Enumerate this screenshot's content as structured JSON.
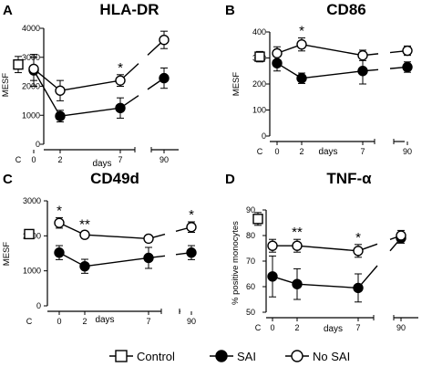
{
  "legend": {
    "items": [
      {
        "label": "Control",
        "marker": "open-square"
      },
      {
        "label": "SAI",
        "marker": "filled-circle"
      },
      {
        "label": "No SAI",
        "marker": "open-circle"
      }
    ],
    "placement": "bottom-center"
  },
  "colors": {
    "ink": "#000000",
    "background": "#ffffff"
  },
  "chart_data": [
    {
      "type": "line",
      "letter": "A",
      "title": "HLA-DR",
      "ylabel": "MESF",
      "xlabel": "days",
      "ylim": [
        0,
        4000
      ],
      "yticks": [
        0,
        1000,
        2000,
        3000,
        4000
      ],
      "xtick_labels": [
        "C",
        "0",
        "2",
        "7",
        "90"
      ],
      "axis_break": "between 7 and 90",
      "control": {
        "value": 2750,
        "err": 280
      },
      "series": [
        {
          "name": "SAI",
          "marker": "filled-circle",
          "points": [
            {
              "x": "0",
              "y": 2550,
              "err": 550
            },
            {
              "x": "2",
              "y": 970,
              "err": 200
            },
            {
              "x": "7",
              "y": 1250,
              "err": 350
            },
            {
              "x": "90",
              "y": 2280,
              "err": 350
            }
          ]
        },
        {
          "name": "No SAI",
          "marker": "open-circle",
          "points": [
            {
              "x": "0",
              "y": 2600,
              "err": 400
            },
            {
              "x": "2",
              "y": 1850,
              "err": 350
            },
            {
              "x": "7",
              "y": 2200,
              "err": 200
            },
            {
              "x": "90",
              "y": 3600,
              "err": 300
            }
          ]
        }
      ],
      "annotations": [
        {
          "x": "7",
          "text": "*"
        }
      ]
    },
    {
      "type": "line",
      "letter": "B",
      "title": "CD86",
      "ylabel": "MESF",
      "xlabel": "days",
      "ylim": [
        0,
        400
      ],
      "yticks": [
        0,
        100,
        200,
        300,
        400
      ],
      "xtick_labels": [
        "C",
        "0",
        "2",
        "7",
        "90"
      ],
      "axis_break": "between 7 and 90",
      "control": {
        "value": 305,
        "err": 20
      },
      "series": [
        {
          "name": "SAI",
          "marker": "filled-circle",
          "points": [
            {
              "x": "0",
              "y": 280,
              "err": 30
            },
            {
              "x": "2",
              "y": 222,
              "err": 20
            },
            {
              "x": "7",
              "y": 250,
              "err": 50
            },
            {
              "x": "90",
              "y": 265,
              "err": 20
            }
          ]
        },
        {
          "name": "No SAI",
          "marker": "open-circle",
          "points": [
            {
              "x": "0",
              "y": 318,
              "err": 25
            },
            {
              "x": "2",
              "y": 352,
              "err": 25
            },
            {
              "x": "7",
              "y": 310,
              "err": 20
            },
            {
              "x": "90",
              "y": 328,
              "err": 18
            }
          ]
        }
      ],
      "annotations": [
        {
          "x": "2",
          "text": "*"
        }
      ]
    },
    {
      "type": "line",
      "letter": "C",
      "title": "CD49d",
      "ylabel": "MESF",
      "xlabel": "days",
      "ylim": [
        0,
        3000
      ],
      "yticks": [
        0,
        1000,
        2000,
        3000
      ],
      "xtick_labels": [
        "C",
        "0",
        "2",
        "7",
        "90"
      ],
      "axis_break": "between 7 and 90",
      "control": {
        "value": 2050,
        "err": 100
      },
      "series": [
        {
          "name": "SAI",
          "marker": "filled-circle",
          "points": [
            {
              "x": "0",
              "y": 1520,
              "err": 200
            },
            {
              "x": "2",
              "y": 1130,
              "err": 200
            },
            {
              "x": "7",
              "y": 1370,
              "err": 300
            },
            {
              "x": "90",
              "y": 1520,
              "err": 200
            }
          ]
        },
        {
          "name": "No SAI",
          "marker": "open-circle",
          "points": [
            {
              "x": "0",
              "y": 2370,
              "err": 150
            },
            {
              "x": "2",
              "y": 2030,
              "err": 100
            },
            {
              "x": "7",
              "y": 1920,
              "err": 100
            },
            {
              "x": "90",
              "y": 2250,
              "err": 150
            }
          ]
        }
      ],
      "annotations": [
        {
          "x": "0",
          "text": "*"
        },
        {
          "x": "2",
          "text": "**"
        },
        {
          "x": "90",
          "text": "*"
        }
      ]
    },
    {
      "type": "line",
      "letter": "D",
      "title": "TNF-α",
      "ylabel": "% positive monocytes",
      "xlabel": "days",
      "ylim": [
        50,
        90
      ],
      "yticks": [
        50,
        60,
        70,
        80,
        90
      ],
      "xtick_labels": [
        "C",
        "0",
        "2",
        "7",
        "90"
      ],
      "axis_break": "between 7 and 90",
      "control": {
        "value": 86.5,
        "err": 2.5
      },
      "series": [
        {
          "name": "SAI",
          "marker": "filled-circle",
          "points": [
            {
              "x": "0",
              "y": 64,
              "err": 8
            },
            {
              "x": "2",
              "y": 61,
              "err": 6
            },
            {
              "x": "7",
              "y": 59.5,
              "err": 5.5
            },
            {
              "x": "90",
              "y": 79,
              "err": 2
            }
          ]
        },
        {
          "name": "No SAI",
          "marker": "open-circle",
          "points": [
            {
              "x": "0",
              "y": 76,
              "err": 2.5
            },
            {
              "x": "2",
              "y": 76,
              "err": 2.5
            },
            {
              "x": "7",
              "y": 74,
              "err": 2.5
            },
            {
              "x": "90",
              "y": 80,
              "err": 2
            }
          ]
        }
      ],
      "annotations": [
        {
          "x": "2",
          "text": "**"
        },
        {
          "x": "7",
          "text": "*"
        }
      ]
    }
  ]
}
